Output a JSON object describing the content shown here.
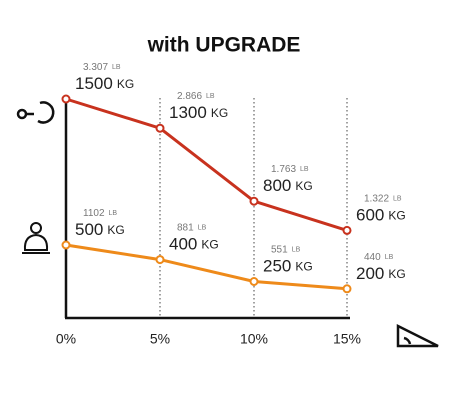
{
  "chart_data": {
    "type": "line",
    "title": "with UPGRADE",
    "categories": [
      "0%",
      "5%",
      "10%",
      "15%"
    ],
    "ylim": [
      0,
      1500
    ],
    "unit": "KG",
    "secondary_unit": "LB",
    "series": [
      {
        "color": "#c8321e",
        "values": [
          1500,
          1300,
          800,
          600
        ],
        "secondary_values": [
          3307,
          2866,
          1763,
          1322
        ],
        "secondary_value_labels": [
          "3.307",
          "2.866",
          "1.763",
          "1.322"
        ]
      },
      {
        "color": "#ee8a1a",
        "values": [
          500,
          400,
          250,
          200
        ],
        "secondary_values": [
          1102,
          881,
          551,
          440
        ]
      }
    ]
  }
}
